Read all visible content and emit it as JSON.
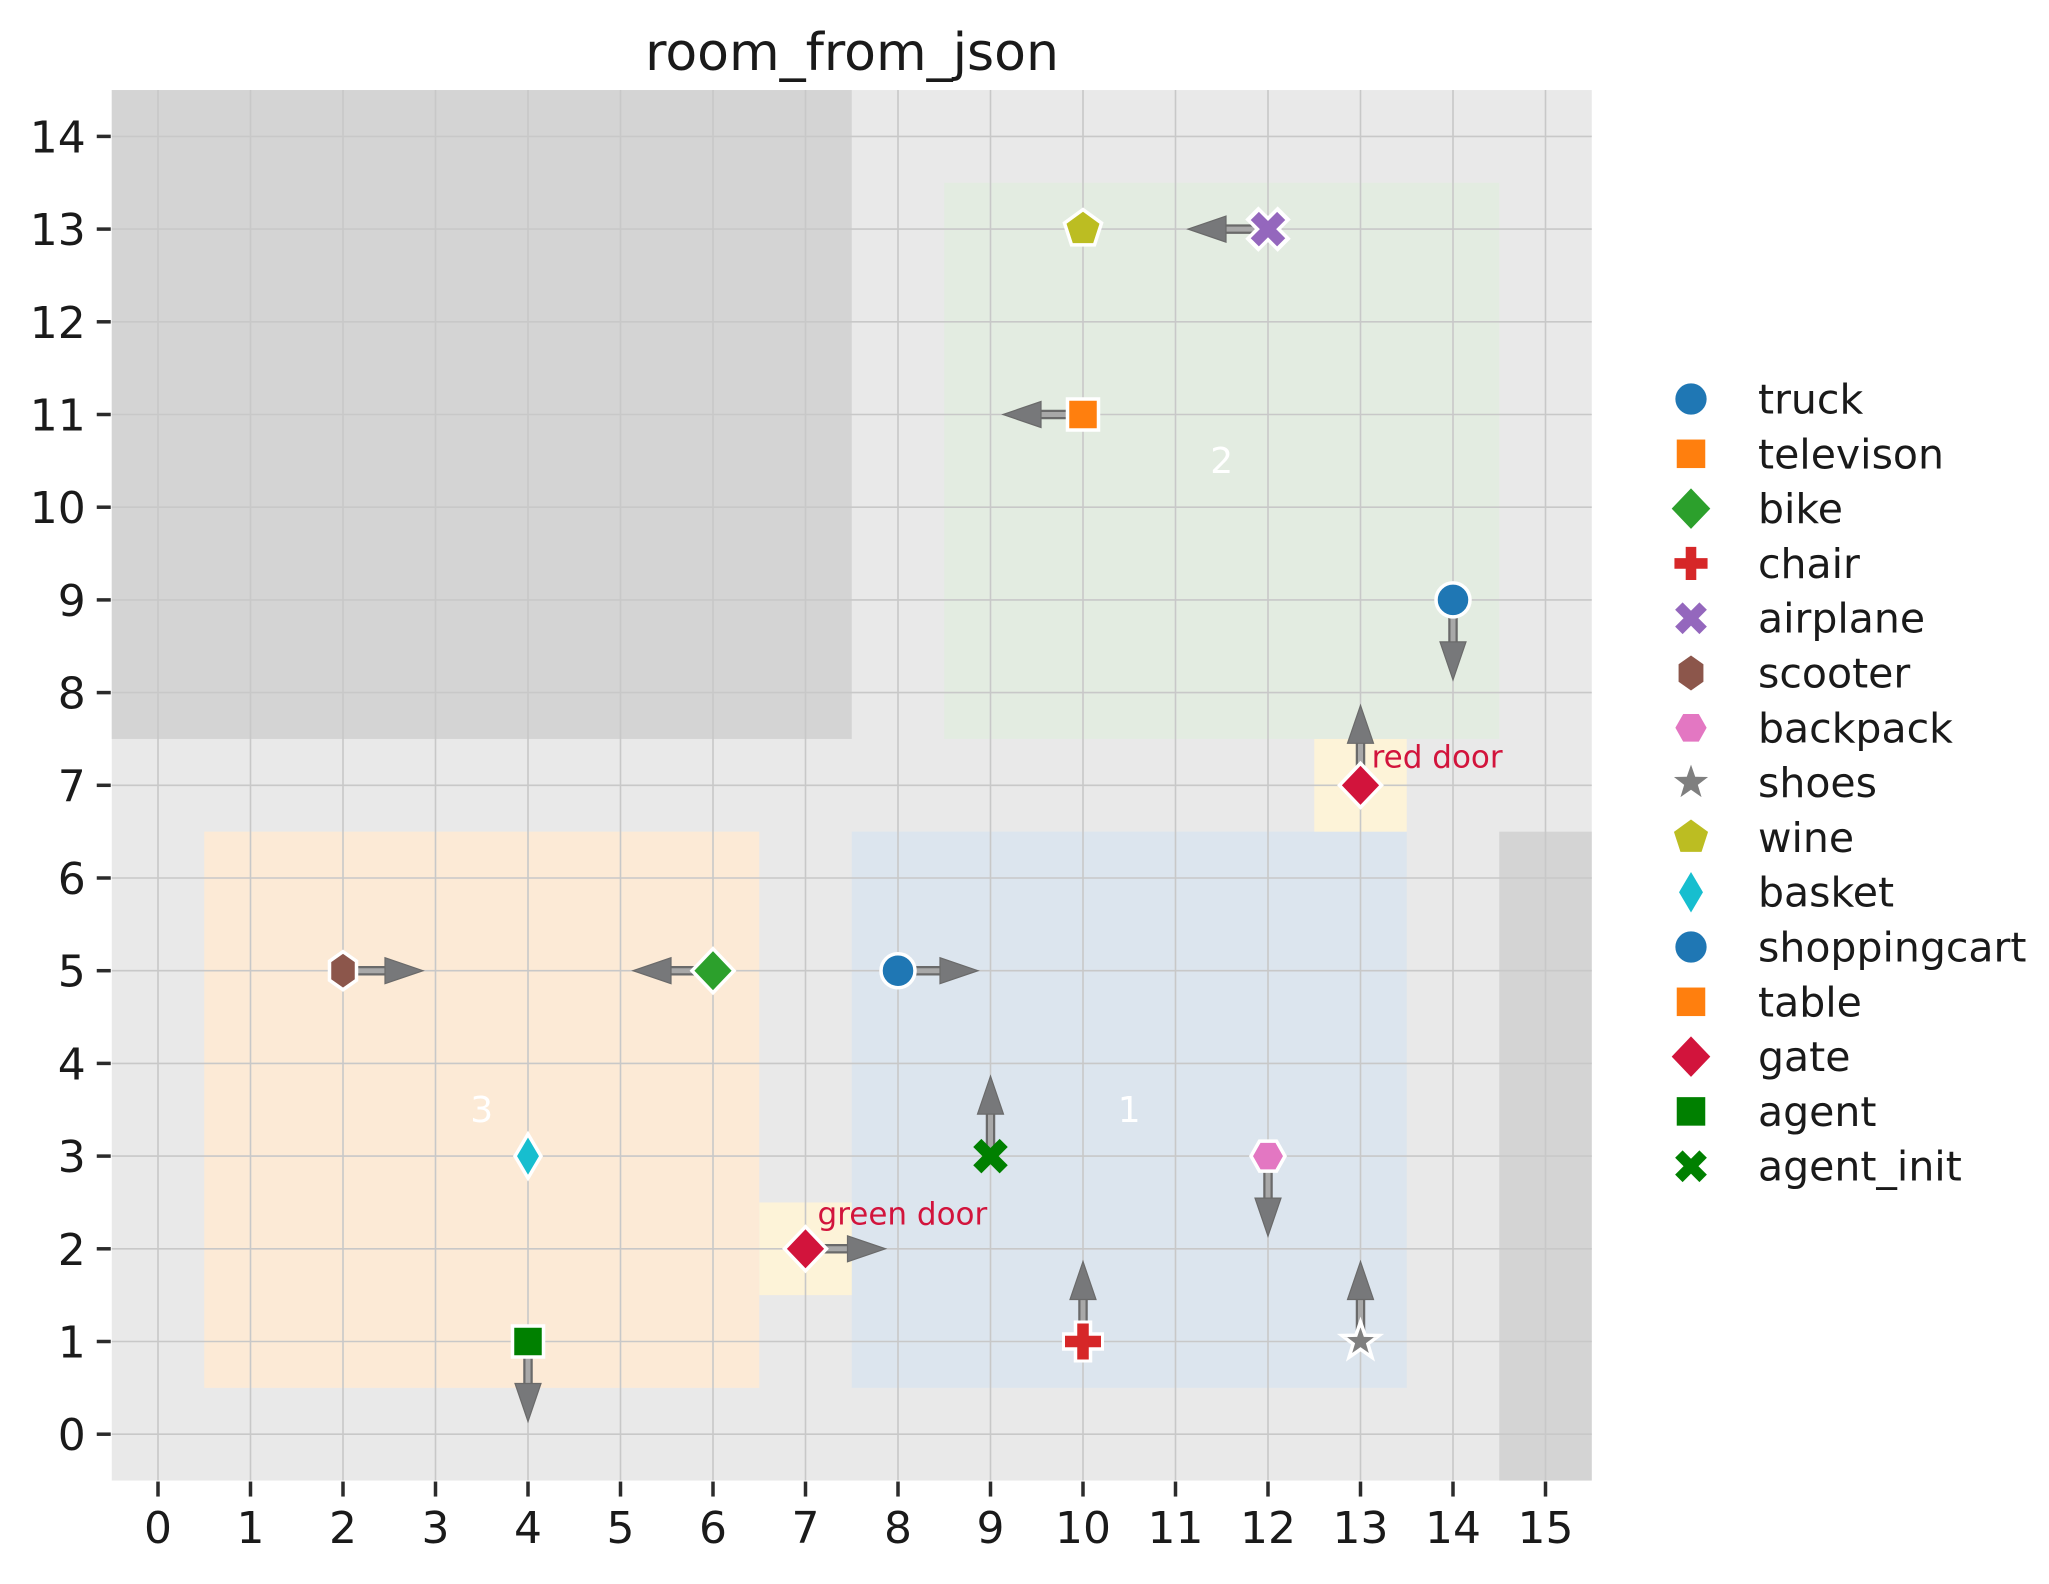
{
  "title": "room_from_json",
  "colors": {
    "figure_bg": "#ffffff",
    "plot_bg": "#e9e9e9",
    "wall": "#d4d4d4",
    "grid": "#c8c8c8",
    "room_green": "#e3ece1",
    "room_blue": "#dce5ee",
    "room_orange": "#fcead6",
    "door_fill": "#fdf3d8",
    "door_text": "#d2143c",
    "room_label": "#ffffff",
    "text": "#1a1a1a",
    "tick": "#2b2b2b",
    "arrow_fill": "#77787a",
    "arrow_shaft": "#a8a8a8",
    "arrow_edge": "#6a6a6a",
    "marker_edge": "#ffffff"
  },
  "chart_data": {
    "type": "scatter",
    "title": "room_from_json",
    "xlim": [
      -0.5,
      15.5
    ],
    "ylim": [
      -0.5,
      14.5
    ],
    "xticks": [
      0,
      1,
      2,
      3,
      4,
      5,
      6,
      7,
      8,
      9,
      10,
      11,
      12,
      13,
      14,
      15
    ],
    "yticks": [
      0,
      1,
      2,
      3,
      4,
      5,
      6,
      7,
      8,
      9,
      10,
      11,
      12,
      13,
      14
    ],
    "grid": true,
    "legend_position": "center right",
    "walls": [
      {
        "id": "wall-top-left",
        "x": [
          -0.5,
          7.5
        ],
        "y": [
          7.5,
          14.5
        ]
      },
      {
        "id": "wall-bottom-right",
        "x": [
          14.5,
          15.5
        ],
        "y": [
          -0.5,
          6.5
        ]
      }
    ],
    "rooms": [
      {
        "id": "room-2",
        "label": "2",
        "x": [
          8.5,
          14.5
        ],
        "y": [
          7.5,
          13.5
        ],
        "fill_key": "room_green",
        "label_pos": [
          11.5,
          10.5
        ]
      },
      {
        "id": "room-3",
        "label": "3",
        "x": [
          0.5,
          6.5
        ],
        "y": [
          0.5,
          6.5
        ],
        "fill_key": "room_orange",
        "label_pos": [
          3.5,
          3.5
        ]
      },
      {
        "id": "room-1",
        "label": "1",
        "x": [
          7.5,
          13.5
        ],
        "y": [
          0.5,
          6.5
        ],
        "fill_key": "room_blue",
        "label_pos": [
          10.5,
          3.5
        ]
      }
    ],
    "doors": [
      {
        "id": "red-door",
        "label": "red door",
        "x": [
          12.5,
          13.5
        ],
        "y": [
          6.5,
          7.5
        ],
        "label_pos": [
          13.12,
          7.19
        ]
      },
      {
        "id": "green-door",
        "label": "green door",
        "x": [
          6.5,
          7.5
        ],
        "y": [
          1.5,
          2.5
        ],
        "label_pos": [
          7.13,
          2.26
        ]
      }
    ],
    "objects": [
      {
        "id": "wine",
        "name": "wine",
        "marker": "pentagon",
        "color": "#bcbd22",
        "pos": [
          10,
          13
        ],
        "dir": null,
        "edge": true
      },
      {
        "id": "airplane",
        "name": "airplane",
        "marker": "x",
        "color": "#9467bd",
        "pos": [
          12,
          13
        ],
        "dir": "left",
        "edge": true
      },
      {
        "id": "televison",
        "name": "televison",
        "marker": "square",
        "color": "#ff7f0e",
        "pos": [
          10,
          11
        ],
        "dir": "left",
        "edge": true
      },
      {
        "id": "truck",
        "name": "truck",
        "marker": "circle",
        "color": "#1f77b4",
        "pos": [
          14,
          9
        ],
        "dir": "down",
        "edge": true
      },
      {
        "id": "gate-red-door",
        "name": "gate",
        "marker": "diamond",
        "color": "#d2143c",
        "pos": [
          13,
          7
        ],
        "dir": "up",
        "edge": true
      },
      {
        "id": "scooter",
        "name": "scooter",
        "marker": "hexagon-v",
        "color": "#8c564b",
        "pos": [
          2,
          5
        ],
        "dir": "right",
        "edge": true
      },
      {
        "id": "bike",
        "name": "bike",
        "marker": "diamond",
        "color": "#2ca02c",
        "pos": [
          6,
          5
        ],
        "dir": "left",
        "edge": true
      },
      {
        "id": "shoppingcart",
        "name": "shoppingcart",
        "marker": "circle",
        "color": "#1f77b4",
        "pos": [
          8,
          5
        ],
        "dir": "right",
        "edge": true
      },
      {
        "id": "basket",
        "name": "basket",
        "marker": "thin-diamond",
        "color": "#17becf",
        "pos": [
          4,
          3
        ],
        "dir": null,
        "edge": true
      },
      {
        "id": "agent_init",
        "name": "agent_init",
        "marker": "x",
        "color": "#008000",
        "pos": [
          9,
          3
        ],
        "dir": "up",
        "edge": false
      },
      {
        "id": "backpack",
        "name": "backpack",
        "marker": "hexagon-h",
        "color": "#e377c2",
        "pos": [
          12,
          3
        ],
        "dir": "down",
        "edge": true
      },
      {
        "id": "gate-green-door",
        "name": "gate",
        "marker": "diamond",
        "color": "#d2143c",
        "pos": [
          7,
          2
        ],
        "dir": "right",
        "edge": true
      },
      {
        "id": "agent",
        "name": "agent",
        "marker": "square",
        "color": "#008000",
        "pos": [
          4,
          1
        ],
        "dir": "down",
        "edge": true
      },
      {
        "id": "chair",
        "name": "chair",
        "marker": "plus",
        "color": "#d62728",
        "pos": [
          10,
          1
        ],
        "dir": "up",
        "edge": true
      },
      {
        "id": "shoes",
        "name": "shoes",
        "marker": "star",
        "color": "#7f7f7f",
        "pos": [
          13,
          1
        ],
        "dir": "up",
        "edge": true
      }
    ],
    "legend": [
      {
        "label": "truck",
        "marker": "circle",
        "color": "#1f77b4"
      },
      {
        "label": "televison",
        "marker": "square",
        "color": "#ff7f0e"
      },
      {
        "label": "bike",
        "marker": "diamond",
        "color": "#2ca02c"
      },
      {
        "label": "chair",
        "marker": "plus",
        "color": "#d62728"
      },
      {
        "label": "airplane",
        "marker": "x",
        "color": "#9467bd"
      },
      {
        "label": "scooter",
        "marker": "hexagon-v",
        "color": "#8c564b"
      },
      {
        "label": "backpack",
        "marker": "hexagon-h",
        "color": "#e377c2"
      },
      {
        "label": "shoes",
        "marker": "star",
        "color": "#7f7f7f"
      },
      {
        "label": "wine",
        "marker": "pentagon",
        "color": "#bcbd22"
      },
      {
        "label": "basket",
        "marker": "thin-diamond",
        "color": "#17becf"
      },
      {
        "label": "shoppingcart",
        "marker": "circle",
        "color": "#1f77b4"
      },
      {
        "label": "table",
        "marker": "square",
        "color": "#ff7f0e"
      },
      {
        "label": "gate",
        "marker": "diamond",
        "color": "#d2143c"
      },
      {
        "label": "agent",
        "marker": "square",
        "color": "#008000"
      },
      {
        "label": "agent_init",
        "marker": "x",
        "color": "#008000"
      }
    ]
  }
}
